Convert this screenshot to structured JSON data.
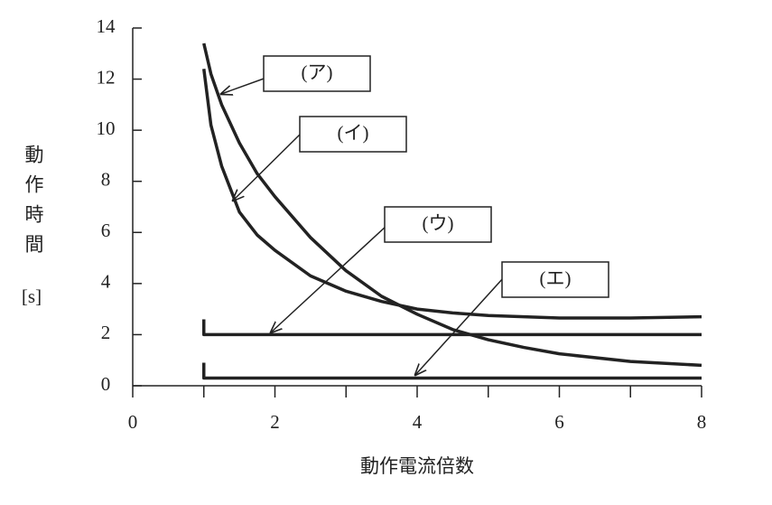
{
  "chart_data": {
    "type": "line",
    "y_label": "動作時間",
    "y_unit": "[s]",
    "x_label": "動作電流倍数",
    "xlim": [
      0,
      8
    ],
    "xticks": [
      0,
      2,
      4,
      6,
      8
    ],
    "xminorticks": [
      1,
      3,
      5,
      7
    ],
    "ylim": [
      0,
      14
    ],
    "yticks": [
      0,
      2,
      4,
      6,
      8,
      10,
      12,
      14
    ],
    "series": [
      {
        "name": "(ア)",
        "color": "#222222",
        "x": [
          1,
          1.1,
          1.25,
          1.5,
          1.75,
          2,
          2.5,
          3,
          3.5,
          4,
          4.5,
          5,
          5.5,
          6,
          7,
          8
        ],
        "values": [
          13.4,
          12.2,
          11.0,
          9.5,
          8.3,
          7.4,
          5.8,
          4.5,
          3.5,
          2.8,
          2.2,
          1.8,
          1.5,
          1.25,
          0.95,
          0.8
        ]
      },
      {
        "name": "(イ)",
        "color": "#222222",
        "x": [
          1,
          1.1,
          1.25,
          1.5,
          1.75,
          2,
          2.5,
          3,
          3.5,
          4,
          4.5,
          5,
          6,
          7,
          8
        ],
        "values": [
          12.4,
          10.2,
          8.6,
          6.8,
          5.9,
          5.3,
          4.3,
          3.7,
          3.3,
          3.0,
          2.85,
          2.75,
          2.65,
          2.65,
          2.7
        ]
      },
      {
        "name": "(ウ)",
        "color": "#222222",
        "x": [
          1,
          1,
          8
        ],
        "values": [
          2.6,
          2,
          2
        ]
      },
      {
        "name": "(エ)",
        "color": "#222222",
        "x": [
          1,
          1,
          8
        ],
        "values": [
          0.9,
          0.3,
          0.3
        ]
      }
    ]
  }
}
